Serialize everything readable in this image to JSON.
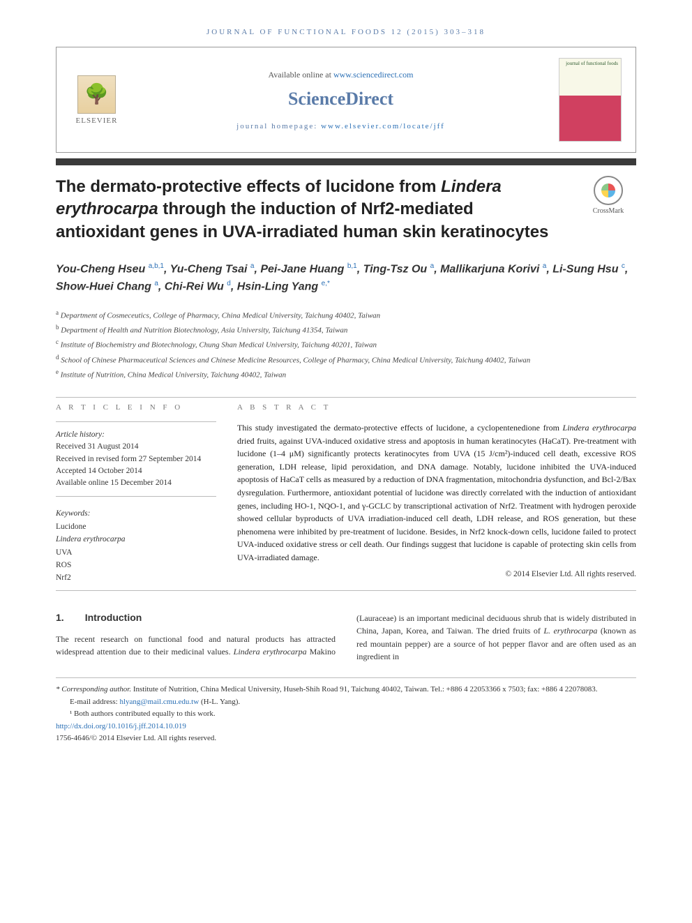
{
  "journal_header": "JOURNAL OF FUNCTIONAL FOODS 12 (2015) 303–318",
  "topbox": {
    "available_text": "Available online at ",
    "available_link": "www.sciencedirect.com",
    "brand": "ScienceDirect",
    "homepage_label": "journal homepage: ",
    "homepage_link": "www.elsevier.com/locate/jff",
    "elsevier": "ELSEVIER",
    "cover_title": "journal of functional foods"
  },
  "crossmark": "CrossMark",
  "title": {
    "pre": "The dermato-protective effects of lucidone from ",
    "italic": "Lindera erythrocarpa",
    "post": " through the induction of Nrf2-mediated antioxidant genes in UVA-irradiated human skin keratinocytes"
  },
  "authors": [
    {
      "name": "You-Cheng Hseu",
      "sup": "a,b,1"
    },
    {
      "name": "Yu-Cheng Tsai",
      "sup": "a"
    },
    {
      "name": "Pei-Jane Huang",
      "sup": "b,1"
    },
    {
      "name": "Ting-Tsz Ou",
      "sup": "a"
    },
    {
      "name": "Mallikarjuna Korivi",
      "sup": "a"
    },
    {
      "name": "Li-Sung Hsu",
      "sup": "c"
    },
    {
      "name": "Show-Huei Chang",
      "sup": "a"
    },
    {
      "name": "Chi-Rei Wu",
      "sup": "d"
    },
    {
      "name": "Hsin-Ling Yang",
      "sup": "e,*"
    }
  ],
  "affiliations": [
    {
      "sup": "a",
      "text": "Department of Cosmeceutics, College of Pharmacy, China Medical University, Taichung 40402, Taiwan"
    },
    {
      "sup": "b",
      "text": "Department of Health and Nutrition Biotechnology, Asia University, Taichung 41354, Taiwan"
    },
    {
      "sup": "c",
      "text": "Institute of Biochemistry and Biotechnology, Chung Shan Medical University, Taichung 40201, Taiwan"
    },
    {
      "sup": "d",
      "text": "School of Chinese Pharmaceutical Sciences and Chinese Medicine Resources, College of Pharmacy, China Medical University, Taichung 40402, Taiwan"
    },
    {
      "sup": "e",
      "text": "Institute of Nutrition, China Medical University, Taichung 40402, Taiwan"
    }
  ],
  "info_heading": "A R T I C L E   I N F O",
  "abstract_heading": "A B S T R A C T",
  "history": {
    "label": "Article history:",
    "lines": [
      "Received 31 August 2014",
      "Received in revised form 27 September 2014",
      "Accepted 14 October 2014",
      "Available online 15 December 2014"
    ]
  },
  "keywords": {
    "label": "Keywords:",
    "items": [
      "Lucidone",
      "Lindera erythrocarpa",
      "UVA",
      "ROS",
      "Nrf2"
    ]
  },
  "abstract_text": "This study investigated the dermato-protective effects of lucidone, a cyclopentenedione from <em>Lindera erythrocarpa</em> dried fruits, against UVA-induced oxidative stress and apoptosis in human keratinocytes (HaCaT). Pre-treatment with lucidone (1–4 μM) significantly protects keratinocytes from UVA (15 J/cm²)-induced cell death, excessive ROS generation, LDH release, lipid peroxidation, and DNA damage. Notably, lucidone inhibited the UVA-induced apoptosis of HaCaT cells as measured by a reduction of DNA fragmentation, mitochondria dysfunction, and Bcl-2/Bax dysregulation. Furthermore, antioxidant potential of lucidone was directly correlated with the induction of antioxidant genes, including HO-1, NQO-1, and γ-GCLC by transcriptional activation of Nrf2. Treatment with hydrogen peroxide showed cellular byproducts of UVA irradiation-induced cell death, LDH release, and ROS generation, but these phenomena were inhibited by pre-treatment of lucidone. Besides, in Nrf2 knock-down cells, lucidone failed to protect UVA-induced oxidative stress or cell death. Our findings suggest that lucidone is capable of protecting skin cells from UVA-irradiated damage.",
  "abstract_copyright": "© 2014 Elsevier Ltd. All rights reserved.",
  "intro": {
    "number": "1.",
    "heading": "Introduction",
    "para": "The recent research on functional food and natural products has attracted widespread attention due to their medicinal values. <em>Lindera erythrocarpa</em> Makino (Lauraceae) is an important medicinal deciduous shrub that is widely distributed in China, Japan, Korea, and Taiwan. The dried fruits of <em>L. erythrocarpa</em> (known as red mountain pepper) are a source of hot pepper flavor and are often used as an ingredient in"
  },
  "footnotes": {
    "corresponding_label": "* Corresponding author.",
    "corresponding_text": " Institute of Nutrition, China Medical University, Huseh-Shih Road 91, Taichung 40402, Taiwan. Tel.: +886 4 22053366 x 7503; fax: +886 4 22078083.",
    "email_label": "E-mail address: ",
    "email": "hlyang@mail.cmu.edu.tw",
    "email_author": " (H-L. Yang).",
    "equal": "¹ Both authors contributed equally to this work.",
    "doi": "http://dx.doi.org/10.1016/j.jff.2014.10.019",
    "issn": "1756-4646/© 2014 Elsevier Ltd. All rights reserved."
  }
}
